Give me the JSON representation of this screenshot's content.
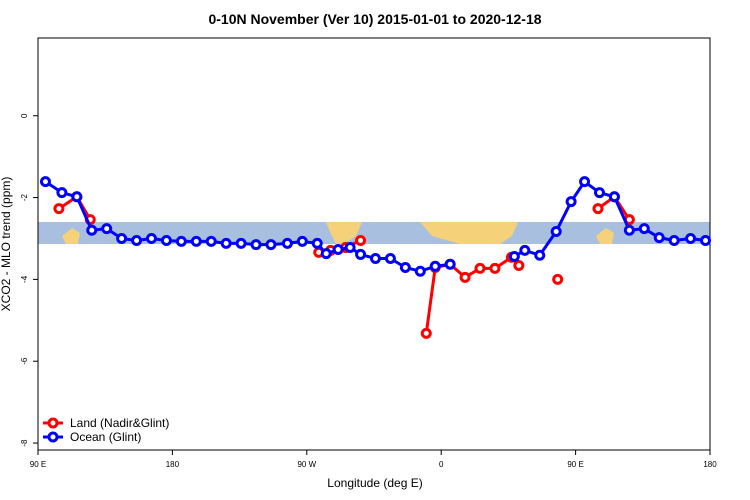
{
  "chart_data": {
    "type": "line",
    "title": "0-10N November (Ver 10)   2015-01-01 to 2020-12-18",
    "x_label": "Longitude (deg E)",
    "y_label": "XCO2 - MLO trend (ppm)",
    "xlim": [
      90,
      540
    ],
    "xticks": [
      {
        "value": 90,
        "label": "90 E"
      },
      {
        "value": 180,
        "label": "180"
      },
      {
        "value": 270,
        "label": "90 W"
      },
      {
        "value": 360,
        "label": "0"
      },
      {
        "value": 450,
        "label": "90 E"
      },
      {
        "value": 540,
        "label": "180"
      }
    ],
    "ylim": [
      -8.17,
      1.9
    ],
    "yticks": [
      0,
      -2,
      -4,
      -6,
      -8
    ],
    "legend": "bottom-left",
    "series": [
      {
        "name": "Land (Nadir&Glint)",
        "color": "#ff0000",
        "x": [
          104,
          116,
          125,
          200,
          278,
          286,
          296,
          306,
          330,
          350,
          356,
          366,
          376,
          386,
          396,
          407,
          412,
          425,
          438,
          450,
          465,
          476,
          486
        ],
        "values": [
          -2.27,
          -1.98,
          -2.54,
          null,
          -3.34,
          -3.29,
          -3.22,
          -3.05,
          null,
          -5.32,
          -3.71,
          -3.63,
          -3.95,
          -3.73,
          -3.73,
          -3.46,
          -3.66,
          null,
          -4.0,
          null,
          -2.27,
          -1.98,
          -2.54
        ]
      },
      {
        "name": "Ocean (Glint)",
        "color": "#0000ff",
        "x": [
          95,
          106,
          116,
          126,
          136,
          146,
          156,
          166,
          176,
          186,
          196,
          206,
          216,
          226,
          236,
          246,
          257,
          267,
          277,
          283,
          291,
          299,
          306,
          316,
          326,
          336,
          346,
          356,
          366,
          388,
          409,
          416,
          426,
          437,
          447,
          456,
          466,
          476,
          486,
          496,
          506,
          516,
          527,
          537
        ],
        "values": [
          -1.61,
          -1.88,
          -1.98,
          -2.8,
          -2.76,
          -3.0,
          -3.05,
          -3.0,
          -3.05,
          -3.07,
          -3.07,
          -3.07,
          -3.12,
          -3.12,
          -3.15,
          -3.15,
          -3.12,
          -3.07,
          -3.12,
          -3.37,
          -3.27,
          -3.22,
          -3.39,
          -3.49,
          -3.49,
          -3.71,
          -3.8,
          -3.68,
          -3.63,
          null,
          -3.44,
          -3.29,
          -3.41,
          -2.83,
          -2.1,
          -1.61,
          -1.88,
          -1.98,
          -2.8,
          -2.76,
          -2.98,
          -3.05,
          -3.0,
          -3.05
        ]
      }
    ]
  }
}
